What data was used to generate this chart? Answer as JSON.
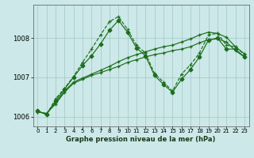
{
  "title": "Graphe pression niveau de la mer (hPa)",
  "background_color": "#cce8e8",
  "grid_color": "#aacccc",
  "line_color": "#1a6e1a",
  "xlim": [
    -0.5,
    23.5
  ],
  "ylim": [
    1005.75,
    1008.85
  ],
  "yticks": [
    1006,
    1007,
    1008
  ],
  "xticks": [
    0,
    1,
    2,
    3,
    4,
    5,
    6,
    7,
    8,
    9,
    10,
    11,
    12,
    13,
    14,
    15,
    16,
    17,
    18,
    19,
    20,
    21,
    22,
    23
  ],
  "series": [
    {
      "x": [
        0,
        1,
        2,
        3,
        4,
        5,
        6,
        7,
        8,
        9,
        10,
        11,
        12,
        13,
        14,
        15,
        16,
        17,
        18,
        19,
        20,
        21,
        22,
        23
      ],
      "y": [
        1006.15,
        1006.05,
        1006.4,
        1006.7,
        1007.0,
        1007.3,
        1007.55,
        1007.85,
        1008.2,
        1008.45,
        1008.15,
        1007.75,
        1007.55,
        1007.05,
        1006.82,
        1006.62,
        1006.95,
        1007.2,
        1007.52,
        1007.95,
        1008.0,
        1007.72,
        1007.72,
        1007.52
      ],
      "linestyle": "-",
      "marker": "D",
      "markersize": 2.5
    },
    {
      "x": [
        0,
        1,
        2,
        3,
        4,
        5,
        6,
        7,
        8,
        9,
        10,
        11,
        12,
        13,
        14,
        15,
        16,
        17,
        18,
        19,
        20,
        21,
        22,
        23
      ],
      "y": [
        1006.12,
        1006.08,
        1006.32,
        1006.62,
        1006.85,
        1006.95,
        1007.05,
        1007.12,
        1007.2,
        1007.28,
        1007.38,
        1007.45,
        1007.52,
        1007.58,
        1007.62,
        1007.68,
        1007.72,
        1007.78,
        1007.88,
        1007.96,
        1007.98,
        1007.9,
        1007.68,
        1007.52
      ],
      "linestyle": "-",
      "marker": "+",
      "markersize": 3.5
    },
    {
      "x": [
        0,
        1,
        2,
        3,
        4,
        5,
        6,
        7,
        8,
        9,
        10,
        11,
        12,
        13,
        14,
        15,
        16,
        17,
        18,
        19,
        20,
        21,
        22,
        23
      ],
      "y": [
        1006.12,
        1006.08,
        1006.35,
        1006.65,
        1006.88,
        1006.98,
        1007.08,
        1007.18,
        1007.28,
        1007.4,
        1007.5,
        1007.58,
        1007.65,
        1007.72,
        1007.78,
        1007.82,
        1007.9,
        1007.98,
        1008.08,
        1008.15,
        1008.12,
        1008.02,
        1007.78,
        1007.6
      ],
      "linestyle": "-",
      "marker": "+",
      "markersize": 3.5
    },
    {
      "x": [
        0,
        1,
        2,
        3,
        4,
        5,
        6,
        7,
        8,
        9,
        10,
        11,
        12,
        13,
        14,
        15,
        16,
        17,
        18,
        19,
        20,
        21,
        22,
        23
      ],
      "y": [
        1006.15,
        1006.05,
        1006.45,
        1006.72,
        1007.02,
        1007.38,
        1007.72,
        1008.08,
        1008.42,
        1008.55,
        1008.22,
        1007.82,
        1007.62,
        1007.1,
        1006.88,
        1006.65,
        1007.08,
        1007.32,
        1007.62,
        1008.08,
        1008.12,
        1007.82,
        1007.78,
        1007.58
      ],
      "linestyle": "--",
      "marker": "+",
      "markersize": 3.5
    }
  ]
}
